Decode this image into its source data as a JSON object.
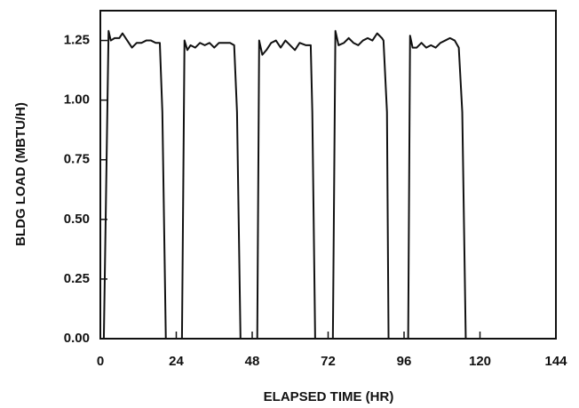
{
  "chart_data": {
    "type": "line",
    "xlabel": "ELAPSED TIME (HR)",
    "ylabel": "BLDG LOAD (MBTU/H)",
    "xlim": [
      0,
      144
    ],
    "xticks": [
      0,
      24,
      48,
      72,
      96,
      120,
      144
    ],
    "ylim": [
      0,
      1.375
    ],
    "yticks": [
      {
        "value": 0,
        "label": "0.00"
      },
      {
        "value": 0.25,
        "label": "0.25"
      },
      {
        "value": 0.5,
        "label": "0.50"
      },
      {
        "value": 0.75,
        "label": "0.75"
      },
      {
        "value": 1,
        "label": "1.00"
      },
      {
        "value": 1.25,
        "label": "1.25"
      }
    ],
    "color": "#111111",
    "x": [
      0,
      1.1,
      2.6,
      3.3,
      4.5,
      6,
      7,
      8.5,
      10,
      11.5,
      13,
      14.5,
      16,
      17.5,
      18.8,
      19.6,
      20.7,
      25.8,
      26.6,
      27.5,
      28.5,
      30,
      31.5,
      33,
      34.5,
      36,
      37.5,
      39,
      41,
      42.3,
      43.2,
      44.3,
      49.6,
      50.2,
      51.2,
      52.5,
      54,
      55.5,
      57,
      58.5,
      60,
      61.5,
      63,
      65,
      66.5,
      67,
      67.9,
      73.5,
      74.3,
      75.3,
      77,
      78.5,
      80,
      81.5,
      83,
      84.5,
      86,
      87.5,
      89,
      89.5,
      90.6,
      91.1,
      97.3,
      97.9,
      98.7,
      100,
      101.5,
      103,
      104.5,
      106,
      107.5,
      109,
      110.5,
      112,
      113.3,
      114.4,
      115.5
    ],
    "values": [
      0,
      0,
      1.29,
      1.25,
      1.26,
      1.26,
      1.28,
      1.25,
      1.22,
      1.24,
      1.24,
      1.25,
      1.25,
      1.24,
      1.24,
      0.95,
      0,
      0,
      1.25,
      1.21,
      1.23,
      1.22,
      1.24,
      1.23,
      1.24,
      1.22,
      1.24,
      1.24,
      1.24,
      1.23,
      0.95,
      0,
      0,
      1.25,
      1.19,
      1.21,
      1.24,
      1.25,
      1.22,
      1.25,
      1.23,
      1.21,
      1.24,
      1.23,
      1.23,
      0.95,
      0,
      0,
      1.29,
      1.23,
      1.24,
      1.26,
      1.24,
      1.23,
      1.25,
      1.26,
      1.25,
      1.28,
      1.26,
      1.25,
      0.95,
      0,
      0,
      1.27,
      1.22,
      1.22,
      1.24,
      1.22,
      1.23,
      1.22,
      1.24,
      1.25,
      1.26,
      1.25,
      1.22,
      0.95,
      0
    ]
  }
}
